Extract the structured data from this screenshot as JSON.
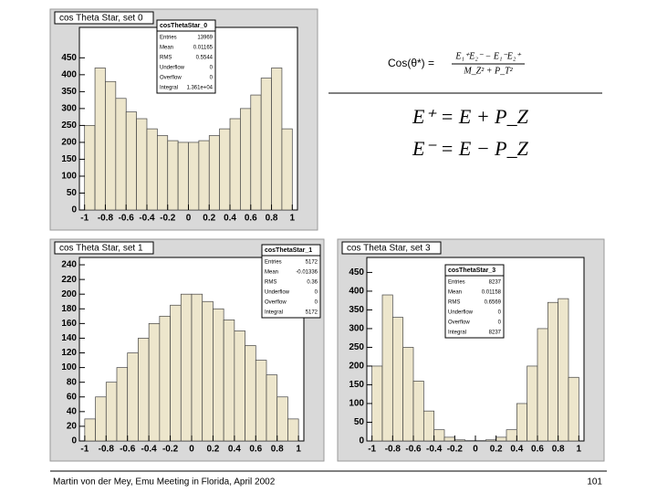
{
  "formula": {
    "label": "Cos(θ*) =",
    "numerator": "E₁⁺E₂⁻ − E₁⁻E₂⁺",
    "denominator": "M_Z² + P_T²"
  },
  "equations": [
    "E⁺ = E + P_Z",
    "E⁻ = E − P_Z"
  ],
  "footer": {
    "text": "Martin von der Mey, Emu Meeting in Florida, April 2002",
    "page": "101"
  },
  "chart_data": [
    {
      "type": "histogram",
      "title": "cos Theta Star, set 0",
      "color": "#ede6cc",
      "stats": {
        "name": "cosThetaStar_0",
        "rows": [
          [
            "Entries",
            "13969"
          ],
          [
            "Mean",
            "0.01165"
          ],
          [
            "RMS",
            "0.5544"
          ],
          [
            "Underflow",
            "0"
          ],
          [
            "Overflow",
            "0"
          ],
          [
            "Integral",
            "1.361e+04"
          ]
        ]
      },
      "bins": [
        -1,
        -0.9,
        -0.8,
        -0.7,
        -0.6,
        -0.5,
        -0.4,
        -0.3,
        -0.2,
        -0.1,
        0,
        0.1,
        0.2,
        0.3,
        0.4,
        0.5,
        0.6,
        0.7,
        0.8,
        0.9,
        1
      ],
      "values": [
        250,
        420,
        380,
        330,
        290,
        270,
        240,
        220,
        205,
        200,
        200,
        205,
        220,
        240,
        270,
        300,
        340,
        390,
        420,
        240
      ],
      "xlim": [
        -1.05,
        1.05
      ],
      "xticks": [
        -1,
        -0.8,
        -0.6,
        -0.4,
        -0.2,
        0,
        0.2,
        0.4,
        0.6,
        0.8,
        1
      ],
      "ylim": [
        0,
        540
      ],
      "yticks": [
        0,
        50,
        100,
        150,
        200,
        250,
        300,
        350,
        400,
        450
      ]
    },
    {
      "type": "histogram",
      "title": "cos Theta Star, set 1",
      "color": "#ede6cc",
      "stats": {
        "name": "cosThetaStar_1",
        "rows": [
          [
            "Entries",
            "5172"
          ],
          [
            "Mean",
            "-0.01336"
          ],
          [
            "RMS",
            "0.36"
          ],
          [
            "Underflow",
            "0"
          ],
          [
            "Overflow",
            "0"
          ],
          [
            "Integral",
            "5172"
          ]
        ]
      },
      "bins": [
        -1,
        -0.9,
        -0.8,
        -0.7,
        -0.6,
        -0.5,
        -0.4,
        -0.3,
        -0.2,
        -0.1,
        0,
        0.1,
        0.2,
        0.3,
        0.4,
        0.5,
        0.6,
        0.7,
        0.8,
        0.9,
        1
      ],
      "values": [
        30,
        60,
        80,
        100,
        120,
        140,
        160,
        170,
        185,
        200,
        200,
        190,
        180,
        165,
        150,
        130,
        110,
        90,
        60,
        30
      ],
      "xlim": [
        -1.05,
        1.05
      ],
      "xticks": [
        -1,
        -0.8,
        -0.6,
        -0.4,
        -0.2,
        0,
        0.2,
        0.4,
        0.6,
        0.8,
        1
      ],
      "ylim": [
        0,
        250
      ],
      "yticks": [
        0,
        20,
        40,
        60,
        80,
        100,
        120,
        140,
        160,
        180,
        200,
        220,
        240
      ]
    },
    {
      "type": "histogram",
      "title": "cos Theta Star, set 3",
      "color": "#ede6cc",
      "stats": {
        "name": "cosThetaStar_3",
        "rows": [
          [
            "Entries",
            "8237"
          ],
          [
            "Mean",
            "0.01158"
          ],
          [
            "RMS",
            "0.6569"
          ],
          [
            "Underflow",
            "0"
          ],
          [
            "Overflow",
            "0"
          ],
          [
            "Integral",
            "8237"
          ]
        ]
      },
      "bins": [
        -1,
        -0.9,
        -0.8,
        -0.7,
        -0.6,
        -0.5,
        -0.4,
        -0.3,
        -0.2,
        -0.1,
        0,
        0.1,
        0.2,
        0.3,
        0.4,
        0.5,
        0.6,
        0.7,
        0.8,
        0.9,
        1
      ],
      "values": [
        200,
        390,
        330,
        250,
        160,
        80,
        30,
        10,
        3,
        1,
        1,
        3,
        10,
        30,
        100,
        200,
        300,
        370,
        380,
        170
      ],
      "xlim": [
        -1.05,
        1.05
      ],
      "xticks": [
        -1,
        -0.8,
        -0.6,
        -0.4,
        -0.2,
        0,
        0.2,
        0.4,
        0.6,
        0.8,
        1
      ],
      "ylim": [
        0,
        490
      ],
      "yticks": [
        0,
        50,
        100,
        150,
        200,
        250,
        300,
        350,
        400,
        450
      ]
    }
  ]
}
